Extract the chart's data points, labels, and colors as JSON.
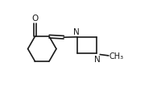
{
  "bg_color": "#ffffff",
  "line_color": "#1a1a1a",
  "line_width": 1.2,
  "text_color": "#1a1a1a",
  "font_size": 7.5,
  "figsize": [
    2.01,
    1.15
  ],
  "dpi": 100,
  "xlim": [
    0,
    10
  ],
  "ylim": [
    0,
    5.5
  ]
}
